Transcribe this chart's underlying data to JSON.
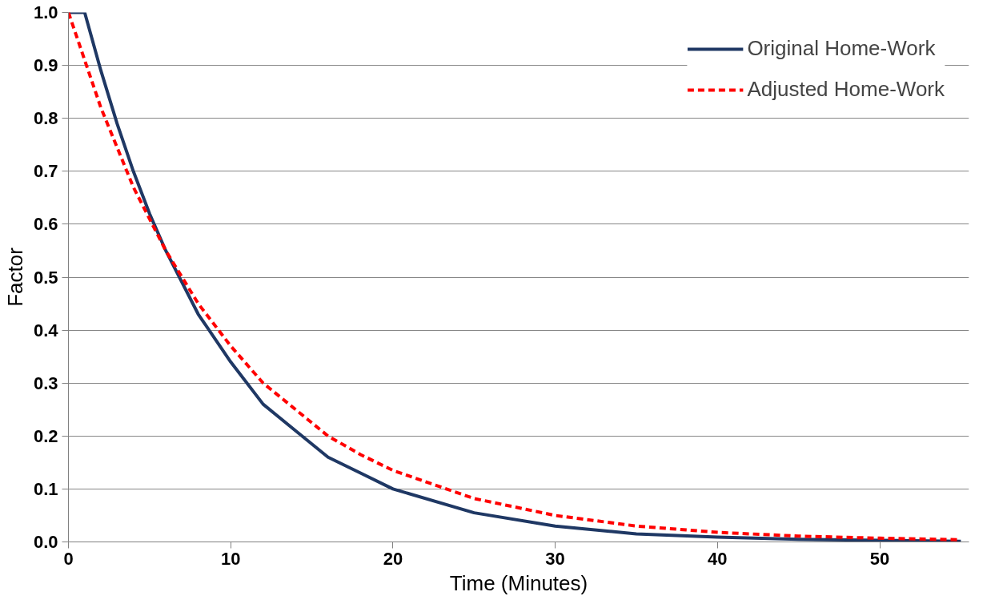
{
  "chart_data": {
    "type": "line",
    "xlabel": "Time (Minutes)",
    "ylabel": "Factor",
    "xlim": [
      0,
      55.5
    ],
    "ylim": [
      0,
      1.0
    ],
    "xticks": [
      0,
      10,
      20,
      30,
      40,
      50
    ],
    "yticks": [
      {
        "value": 0,
        "label": "0.0"
      },
      0.1,
      0.2,
      0.3,
      0.4,
      0.5,
      0.6,
      0.7,
      0.8,
      0.9,
      {
        "value": 1,
        "label": "1.0"
      }
    ],
    "grid": "y",
    "legend": "top right",
    "marker": "none",
    "series": [
      {
        "name": "Original Home-Work",
        "color": "#1f3864",
        "line_style": "solid",
        "x": [
          0,
          1,
          2,
          3,
          4,
          5,
          6,
          8,
          10,
          12,
          14,
          16,
          18,
          20,
          25,
          30,
          35,
          40,
          45,
          50,
          55
        ],
        "values": [
          1.0,
          1.0,
          0.89,
          0.79,
          0.7,
          0.62,
          0.55,
          0.43,
          0.34,
          0.26,
          0.21,
          0.16,
          0.13,
          0.1,
          0.055,
          0.03,
          0.015,
          0.009,
          0.005,
          0.003,
          0.001
        ]
      },
      {
        "name": "Adjusted Home-Work",
        "color": "#ff0000",
        "line_style": "dashed",
        "x": [
          0,
          2,
          4,
          6,
          8,
          10,
          12,
          14,
          16,
          18,
          20,
          25,
          30,
          35,
          40,
          45,
          50,
          55
        ],
        "values": [
          1.0,
          0.82,
          0.67,
          0.55,
          0.45,
          0.37,
          0.3,
          0.25,
          0.2,
          0.165,
          0.135,
          0.082,
          0.05,
          0.03,
          0.018,
          0.011,
          0.007,
          0.004
        ]
      }
    ]
  }
}
